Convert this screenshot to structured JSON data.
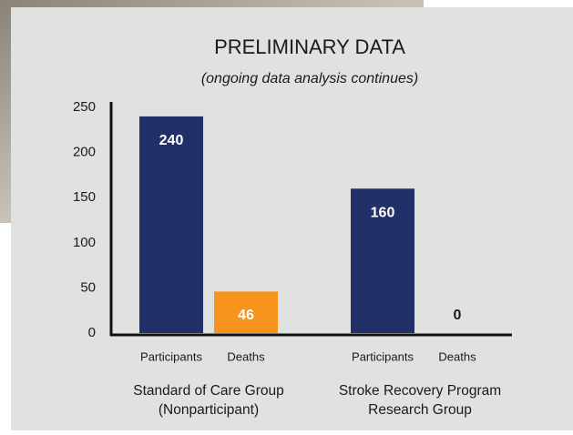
{
  "chart_data": {
    "type": "bar",
    "title": "PRELIMINARY DATA",
    "subtitle": "(ongoing data analysis continues)",
    "categories": [
      [
        "Standard of Care Group",
        "(Nonparticipant)"
      ],
      [
        "Stroke Recovery Program",
        "Research Group"
      ]
    ],
    "series": [
      {
        "name": "Participants",
        "color": "#22306a",
        "values": [
          240,
          160
        ]
      },
      {
        "name": "Deaths",
        "color": "#f7941d",
        "values": [
          46,
          0
        ]
      }
    ],
    "ylim": [
      0,
      250
    ],
    "yticks": [
      0,
      50,
      100,
      150,
      200,
      250
    ],
    "grid": false
  }
}
